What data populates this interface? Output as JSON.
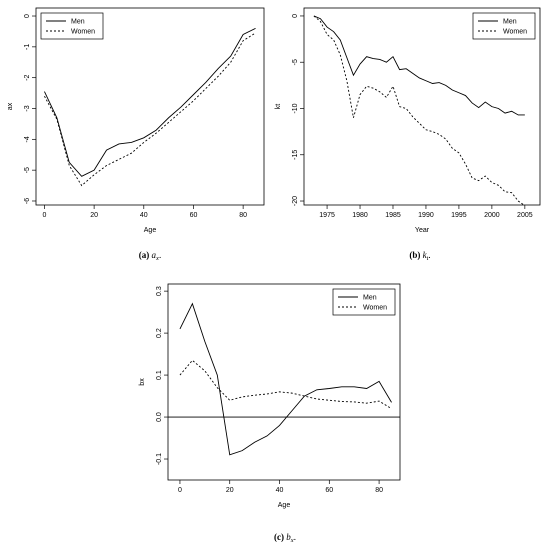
{
  "chart_data": [
    {
      "type": "line",
      "xlabel": "Age",
      "ylabel": "ax",
      "caption": {
        "label": "(a)",
        "symbol": "a",
        "subscript": "x",
        "end": "."
      },
      "x": [
        0,
        5,
        10,
        15,
        20,
        25,
        30,
        35,
        40,
        45,
        50,
        55,
        60,
        65,
        70,
        75,
        80,
        85
      ],
      "series": [
        {
          "name": "Men",
          "color": "#000000",
          "linestyle": "solid",
          "values": [
            -2.45,
            -3.3,
            -4.75,
            -5.2,
            -5.0,
            -4.35,
            -4.15,
            -4.1,
            -3.95,
            -3.7,
            -3.3,
            -2.95,
            -2.55,
            -2.15,
            -1.7,
            -1.3,
            -0.6,
            -0.4
          ]
        },
        {
          "name": "Women",
          "color": "#000000",
          "linestyle": "dashed",
          "values": [
            -2.6,
            -3.35,
            -4.85,
            -5.5,
            -5.15,
            -4.85,
            -4.65,
            -4.45,
            -4.1,
            -3.8,
            -3.45,
            -3.1,
            -2.75,
            -2.35,
            -1.95,
            -1.5,
            -0.8,
            -0.55
          ]
        }
      ],
      "xlim": [
        -3.4,
        88.4
      ],
      "xticks": [
        0,
        20,
        40,
        60,
        80
      ],
      "ylim": [
        -6.13,
        0.26
      ],
      "yticks": [
        0,
        -1,
        -2,
        -3,
        -4,
        -5,
        -6
      ],
      "legend": "upper left"
    },
    {
      "type": "line",
      "xlabel": "Year",
      "ylabel": "kt",
      "caption": {
        "label": "(b)",
        "symbol": "k",
        "subscript": "t",
        "end": "."
      },
      "x": [
        1973,
        1974,
        1975,
        1976,
        1977,
        1978,
        1979,
        1980,
        1981,
        1982,
        1983,
        1984,
        1985,
        1986,
        1987,
        1988,
        1989,
        1990,
        1991,
        1992,
        1993,
        1994,
        1995,
        1996,
        1997,
        1998,
        1999,
        2000,
        2001,
        2002,
        2003,
        2004,
        2005
      ],
      "series": [
        {
          "name": "Men",
          "color": "#000000",
          "linestyle": "solid",
          "values": [
            0,
            -0.3,
            -1.2,
            -1.7,
            -2.6,
            -4.5,
            -6.4,
            -5.2,
            -4.4,
            -4.6,
            -4.7,
            -5.0,
            -4.4,
            -5.8,
            -5.7,
            -6.2,
            -6.7,
            -7.0,
            -7.3,
            -7.2,
            -7.5,
            -8.0,
            -8.3,
            -8.6,
            -9.4,
            -9.9,
            -9.3,
            -9.8,
            -10.0,
            -10.5,
            -10.3,
            -10.7,
            -10.7
          ]
        },
        {
          "name": "Women",
          "color": "#000000",
          "linestyle": "dashed",
          "values": [
            0,
            -0.6,
            -2.0,
            -2.6,
            -4.2,
            -7.0,
            -11.0,
            -8.5,
            -7.6,
            -7.8,
            -8.2,
            -8.8,
            -7.6,
            -9.8,
            -10.0,
            -10.9,
            -11.6,
            -12.3,
            -12.5,
            -12.8,
            -13.3,
            -14.3,
            -14.8,
            -16.0,
            -17.5,
            -17.8,
            -17.3,
            -18.0,
            -18.3,
            -19.0,
            -19.1,
            -20.0,
            -20.5
          ]
        }
      ],
      "xlim": [
        1971.5,
        2007.3
      ],
      "xticks": [
        1975,
        1980,
        1985,
        1990,
        1995,
        2000,
        2005
      ],
      "ylim": [
        -20.43,
        0.86
      ],
      "yticks": [
        0,
        -5,
        -10,
        -15,
        -20
      ],
      "legend": "upper right"
    },
    {
      "type": "line",
      "xlabel": "Age",
      "ylabel": "bx",
      "caption": {
        "label": "(c)",
        "symbol": "b",
        "subscript": "x",
        "end": "."
      },
      "x": [
        0,
        5,
        10,
        15,
        20,
        25,
        30,
        35,
        40,
        45,
        50,
        55,
        60,
        65,
        70,
        75,
        80,
        85
      ],
      "series": [
        {
          "name": "Men",
          "color": "#000000",
          "linestyle": "solid",
          "values": [
            0.21,
            0.27,
            0.18,
            0.1,
            -0.09,
            -0.08,
            -0.06,
            -0.045,
            -0.02,
            0.015,
            0.05,
            0.065,
            0.068,
            0.072,
            0.072,
            0.068,
            0.085,
            0.035
          ]
        },
        {
          "name": "Women",
          "color": "#000000",
          "linestyle": "dashed",
          "values": [
            0.1,
            0.135,
            0.11,
            0.07,
            0.04,
            0.048,
            0.052,
            0.055,
            0.06,
            0.057,
            0.05,
            0.043,
            0.04,
            0.037,
            0.036,
            0.033,
            0.038,
            0.02
          ]
        }
      ],
      "xlim": [
        -4.8,
        88.4
      ],
      "xticks": [
        0,
        20,
        40,
        60,
        80
      ],
      "ylim": [
        -0.15,
        0.317
      ],
      "yticks": [
        {
          "value": -0.1,
          "label": "-0.1"
        },
        {
          "value": 0,
          "label": "0.0"
        },
        0.1,
        0.2,
        0.3
      ],
      "hline": 0,
      "legend": "upper right"
    }
  ]
}
